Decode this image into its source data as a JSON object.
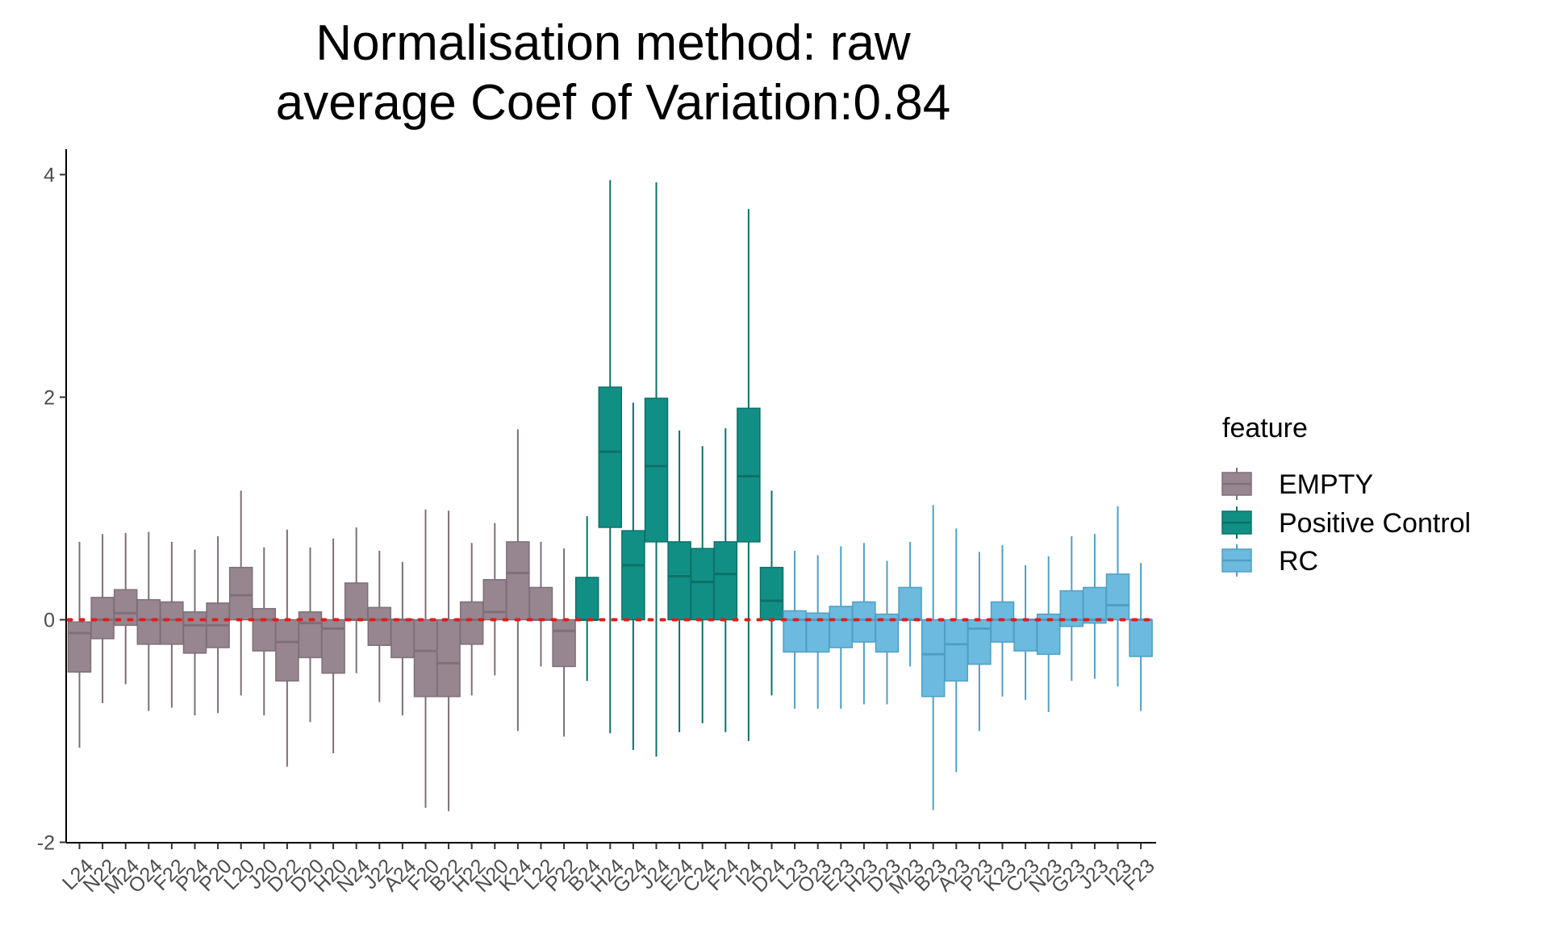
{
  "chart_data": {
    "type": "boxplot",
    "title_line1": "Normalisation method: raw",
    "title_line2": "average Coef of Variation:0.84",
    "xlabel": "",
    "ylabel": "",
    "ylim": [
      -2.05,
      4.2
    ],
    "yticks": [
      -2,
      0,
      2,
      4
    ],
    "reference_line": {
      "y": 0,
      "style": "dotted",
      "color": "#e41a1c"
    },
    "legend": {
      "title": "feature",
      "position": "right",
      "entries": [
        {
          "name": "EMPTY",
          "fill": "#978690",
          "stroke": "#7e6f78"
        },
        {
          "name": "Positive Control",
          "fill": "#128f84",
          "stroke": "#0b7168"
        },
        {
          "name": "RC",
          "fill": "#6cbade",
          "stroke": "#4f9fc4"
        }
      ]
    },
    "boxes": [
      {
        "label": "L24",
        "group": "EMPTY",
        "lower": -1.15,
        "q1": -0.47,
        "median": -0.12,
        "q3": -0.02,
        "upper": 0.7
      },
      {
        "label": "N22",
        "group": "EMPTY",
        "lower": -0.75,
        "q1": -0.17,
        "median": 0.0,
        "q3": 0.2,
        "upper": 0.77
      },
      {
        "label": "M24",
        "group": "EMPTY",
        "lower": -0.58,
        "q1": -0.05,
        "median": 0.06,
        "q3": 0.27,
        "upper": 0.78
      },
      {
        "label": "O24",
        "group": "EMPTY",
        "lower": -0.82,
        "q1": -0.22,
        "median": 0.0,
        "q3": 0.18,
        "upper": 0.79
      },
      {
        "label": "F22",
        "group": "EMPTY",
        "lower": -0.79,
        "q1": -0.22,
        "median": 0.0,
        "q3": 0.16,
        "upper": 0.7
      },
      {
        "label": "P24",
        "group": "EMPTY",
        "lower": -0.86,
        "q1": -0.3,
        "median": -0.05,
        "q3": 0.07,
        "upper": 0.63
      },
      {
        "label": "P20",
        "group": "EMPTY",
        "lower": -0.84,
        "q1": -0.25,
        "median": -0.05,
        "q3": 0.15,
        "upper": 0.75
      },
      {
        "label": "L20",
        "group": "EMPTY",
        "lower": -0.68,
        "q1": 0.0,
        "median": 0.22,
        "q3": 0.47,
        "upper": 1.16
      },
      {
        "label": "J20",
        "group": "EMPTY",
        "lower": -0.86,
        "q1": -0.28,
        "median": 0.0,
        "q3": 0.1,
        "upper": 0.65
      },
      {
        "label": "D22",
        "group": "EMPTY",
        "lower": -1.32,
        "q1": -0.55,
        "median": -0.2,
        "q3": 0.0,
        "upper": 0.81
      },
      {
        "label": "D20",
        "group": "EMPTY",
        "lower": -0.92,
        "q1": -0.34,
        "median": -0.03,
        "q3": 0.07,
        "upper": 0.65
      },
      {
        "label": "H20",
        "group": "EMPTY",
        "lower": -1.2,
        "q1": -0.48,
        "median": -0.08,
        "q3": 0.0,
        "upper": 0.73
      },
      {
        "label": "N24",
        "group": "EMPTY",
        "lower": -0.48,
        "q1": 0.0,
        "median": 0.0,
        "q3": 0.33,
        "upper": 0.83
      },
      {
        "label": "J22",
        "group": "EMPTY",
        "lower": -0.74,
        "q1": -0.23,
        "median": 0.0,
        "q3": 0.11,
        "upper": 0.62
      },
      {
        "label": "A24",
        "group": "EMPTY",
        "lower": -0.86,
        "q1": -0.34,
        "median": 0.0,
        "q3": 0.0,
        "upper": 0.52
      },
      {
        "label": "F20",
        "group": "EMPTY",
        "lower": -1.69,
        "q1": -0.69,
        "median": -0.28,
        "q3": 0.0,
        "upper": 0.99
      },
      {
        "label": "B22",
        "group": "EMPTY",
        "lower": -1.72,
        "q1": -0.69,
        "median": -0.39,
        "q3": 0.0,
        "upper": 0.98
      },
      {
        "label": "H22",
        "group": "EMPTY",
        "lower": -0.68,
        "q1": -0.22,
        "median": 0.0,
        "q3": 0.16,
        "upper": 0.69
      },
      {
        "label": "N20",
        "group": "EMPTY",
        "lower": -0.5,
        "q1": 0.0,
        "median": 0.07,
        "q3": 0.36,
        "upper": 0.87
      },
      {
        "label": "K24",
        "group": "EMPTY",
        "lower": -1.0,
        "q1": 0.0,
        "median": 0.42,
        "q3": 0.7,
        "upper": 1.71
      },
      {
        "label": "L22",
        "group": "EMPTY",
        "lower": -0.42,
        "q1": 0.0,
        "median": 0.0,
        "q3": 0.29,
        "upper": 0.7
      },
      {
        "label": "P22",
        "group": "EMPTY",
        "lower": -1.05,
        "q1": -0.42,
        "median": -0.1,
        "q3": 0.0,
        "upper": 0.64
      },
      {
        "label": "B24",
        "group": "Positive Control",
        "lower": -0.55,
        "q1": 0.0,
        "median": 0.0,
        "q3": 0.38,
        "upper": 0.93
      },
      {
        "label": "H24",
        "group": "Positive Control",
        "lower": -1.02,
        "q1": 0.83,
        "median": 1.51,
        "q3": 2.09,
        "upper": 3.95
      },
      {
        "label": "G24",
        "group": "Positive Control",
        "lower": -1.17,
        "q1": 0.0,
        "median": 0.49,
        "q3": 0.8,
        "upper": 1.95
      },
      {
        "label": "J24",
        "group": "Positive Control",
        "lower": -1.23,
        "q1": 0.7,
        "median": 1.38,
        "q3": 1.99,
        "upper": 3.93
      },
      {
        "label": "E24",
        "group": "Positive Control",
        "lower": -1.01,
        "q1": 0.0,
        "median": 0.39,
        "q3": 0.7,
        "upper": 1.7
      },
      {
        "label": "C24",
        "group": "Positive Control",
        "lower": -0.93,
        "q1": 0.0,
        "median": 0.34,
        "q3": 0.64,
        "upper": 1.56
      },
      {
        "label": "F24",
        "group": "Positive Control",
        "lower": -1.01,
        "q1": 0.0,
        "median": 0.41,
        "q3": 0.7,
        "upper": 1.72
      },
      {
        "label": "I24",
        "group": "Positive Control",
        "lower": -1.09,
        "q1": 0.7,
        "median": 1.29,
        "q3": 1.9,
        "upper": 3.69
      },
      {
        "label": "D24",
        "group": "Positive Control",
        "lower": -0.68,
        "q1": 0.0,
        "median": 0.17,
        "q3": 0.47,
        "upper": 1.16
      },
      {
        "label": "L23",
        "group": "RC",
        "lower": -0.8,
        "q1": -0.29,
        "median": 0.0,
        "q3": 0.08,
        "upper": 0.62
      },
      {
        "label": "O23",
        "group": "RC",
        "lower": -0.8,
        "q1": -0.29,
        "median": 0.0,
        "q3": 0.06,
        "upper": 0.58
      },
      {
        "label": "E23",
        "group": "RC",
        "lower": -0.8,
        "q1": -0.25,
        "median": 0.0,
        "q3": 0.12,
        "upper": 0.66
      },
      {
        "label": "H23",
        "group": "RC",
        "lower": -0.76,
        "q1": -0.2,
        "median": 0.0,
        "q3": 0.16,
        "upper": 0.69
      },
      {
        "label": "D23",
        "group": "RC",
        "lower": -0.76,
        "q1": -0.29,
        "median": 0.0,
        "q3": 0.05,
        "upper": 0.53
      },
      {
        "label": "M23",
        "group": "RC",
        "lower": -0.42,
        "q1": 0.0,
        "median": 0.0,
        "q3": 0.29,
        "upper": 0.7
      },
      {
        "label": "B23",
        "group": "RC",
        "lower": -1.71,
        "q1": -0.69,
        "median": -0.31,
        "q3": 0.0,
        "upper": 1.03
      },
      {
        "label": "A23",
        "group": "RC",
        "lower": -1.37,
        "q1": -0.55,
        "median": -0.22,
        "q3": 0.0,
        "upper": 0.82
      },
      {
        "label": "P23",
        "group": "RC",
        "lower": -1.0,
        "q1": -0.4,
        "median": -0.08,
        "q3": 0.0,
        "upper": 0.61
      },
      {
        "label": "K23",
        "group": "RC",
        "lower": -0.69,
        "q1": -0.2,
        "median": 0.0,
        "q3": 0.16,
        "upper": 0.67
      },
      {
        "label": "C23",
        "group": "RC",
        "lower": -0.72,
        "q1": -0.28,
        "median": 0.0,
        "q3": 0.0,
        "upper": 0.49
      },
      {
        "label": "N23",
        "group": "RC",
        "lower": -0.83,
        "q1": -0.31,
        "median": 0.0,
        "q3": 0.05,
        "upper": 0.57
      },
      {
        "label": "G23",
        "group": "RC",
        "lower": -0.55,
        "q1": -0.06,
        "median": 0.0,
        "q3": 0.26,
        "upper": 0.75
      },
      {
        "label": "J23",
        "group": "RC",
        "lower": -0.53,
        "q1": -0.03,
        "median": 0.0,
        "q3": 0.29,
        "upper": 0.77
      },
      {
        "label": "I23",
        "group": "RC",
        "lower": -0.6,
        "q1": 0.0,
        "median": 0.13,
        "q3": 0.41,
        "upper": 1.02
      },
      {
        "label": "F23",
        "group": "RC",
        "lower": -0.82,
        "q1": -0.33,
        "median": 0.0,
        "q3": 0.0,
        "upper": 0.51
      }
    ]
  }
}
